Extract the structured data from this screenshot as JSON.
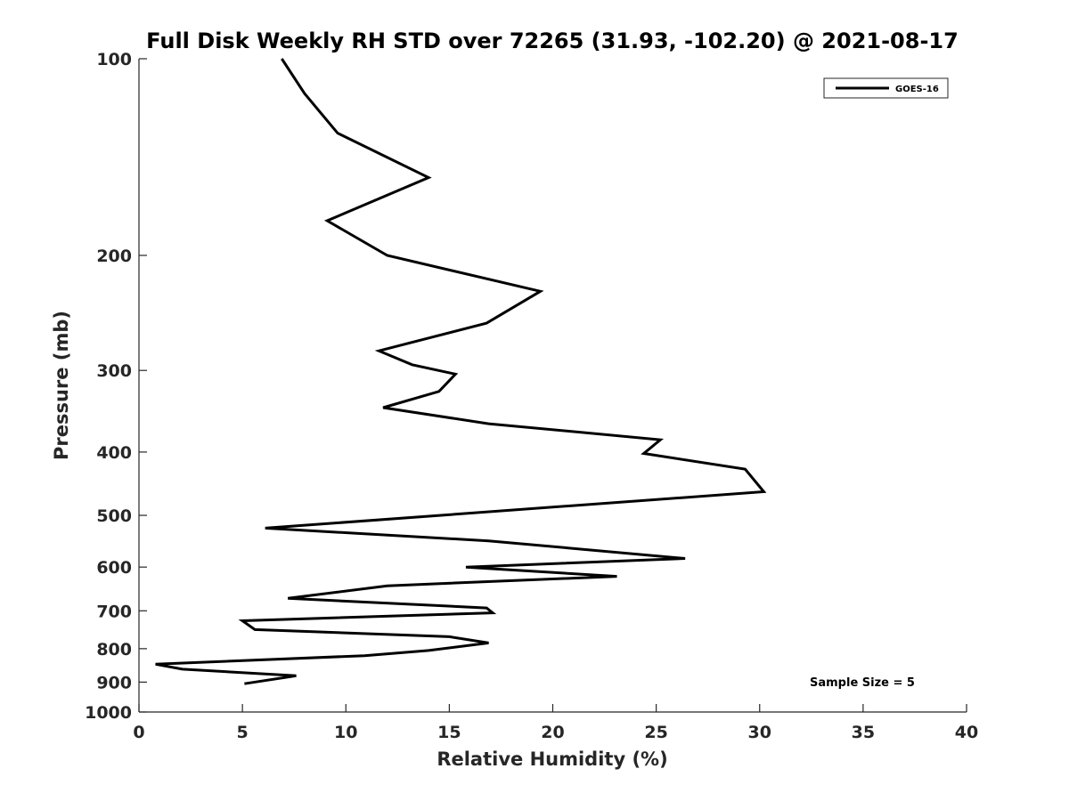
{
  "chart_data": {
    "type": "line",
    "title": "Full Disk Weekly RH STD over 72265 (31.93, -102.20) @ 2021-08-17",
    "xlabel": "Relative Humidity (%)",
    "ylabel": "Pressure (mb)",
    "xlim": [
      0,
      40
    ],
    "ylim": [
      100,
      1000
    ],
    "yscale": "log",
    "y_reversed": true,
    "grid": false,
    "xticks": [
      0,
      5,
      10,
      15,
      20,
      25,
      30,
      35,
      40
    ],
    "xtick_labels": [
      "0",
      "5",
      "10",
      "15",
      "20",
      "25",
      "30",
      "35",
      "40"
    ],
    "yticks": [
      100,
      200,
      300,
      400,
      500,
      600,
      700,
      800,
      900,
      1000
    ],
    "ytick_labels": [
      "100",
      "200",
      "300",
      "400",
      "500",
      "600",
      "700",
      "800",
      "900",
      "1000"
    ],
    "legend_position": "top-right",
    "series": [
      {
        "name": "GOES-16",
        "color": "#000000",
        "x": [
          6.9,
          8.0,
          9.6,
          14.0,
          9.1,
          12.0,
          19.4,
          16.8,
          11.6,
          13.2,
          15.3,
          14.5,
          11.8,
          16.9,
          25.2,
          24.4,
          29.3,
          30.2,
          6.1,
          16.9,
          26.4,
          15.8,
          23.1,
          12.0,
          7.2,
          16.8,
          17.1,
          5.0,
          5.6,
          15.0,
          16.9,
          14.0,
          10.9,
          0.8,
          2.1,
          7.6,
          5.1
        ],
        "y": [
          100,
          113,
          130,
          152,
          177,
          200,
          227,
          254,
          280,
          294,
          304,
          323,
          342,
          362,
          383,
          402,
          425,
          460,
          523,
          547,
          582,
          600,
          620,
          641,
          670,
          693,
          705,
          725,
          748,
          767,
          784,
          805,
          820,
          845,
          860,
          880,
          905
        ]
      }
    ],
    "annotation": "Sample Size = 5"
  }
}
